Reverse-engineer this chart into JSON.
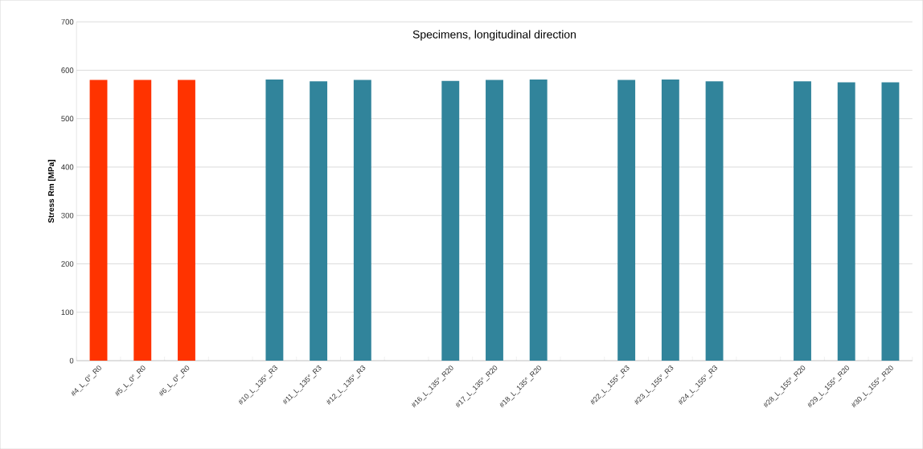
{
  "chart_data": {
    "type": "bar",
    "title": "Specimens, longitudinal direction",
    "ylabel": "Stress Rm [MPa]",
    "categories": [
      "#4_L_0°_R0",
      "#5_L_0°_R0",
      "#6_L_0°_R0",
      null,
      "#10_L_135°_R3",
      "#11_L_135°_R3",
      "#12_L_135°_R3",
      null,
      "#16_L_135°_R20",
      "#17_L_135°_R20",
      "#18_L_135°_R20",
      null,
      "#22_L_155°_R3",
      "#23_L_155°_R3",
      "#24_L_155°_R3",
      null,
      "#28_L_155°_R20",
      "#29_L_155°_R20",
      "#30_L_155°_R20"
    ],
    "values": [
      580,
      580,
      580,
      null,
      581,
      577,
      580,
      null,
      578,
      580,
      581,
      null,
      580,
      581,
      577,
      null,
      577,
      575,
      575
    ],
    "colors": [
      "#ff3300",
      "#ff3300",
      "#ff3300",
      null,
      "#31849b",
      "#31849b",
      "#31849b",
      null,
      "#31849b",
      "#31849b",
      "#31849b",
      null,
      "#31849b",
      "#31849b",
      "#31849b",
      null,
      "#31849b",
      "#31849b",
      "#31849b"
    ],
    "ylim": [
      0,
      700
    ],
    "yticks": [
      0,
      100,
      200,
      300,
      400,
      500,
      600,
      700
    ],
    "grid": "y"
  }
}
